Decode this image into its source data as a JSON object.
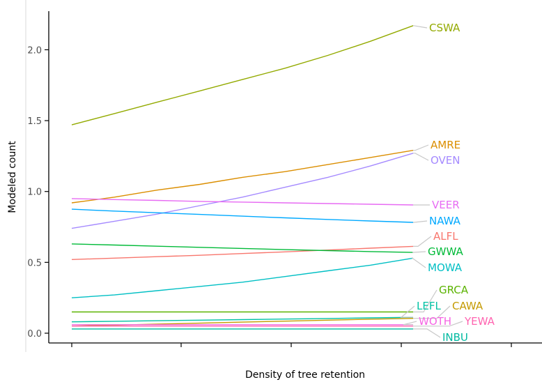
{
  "chart_data": {
    "type": "line",
    "title": "",
    "xlabel": "Density of tree retention",
    "ylabel": "Modeled count",
    "ylim": [
      -0.07,
      2.27
    ],
    "xlim": [
      0,
      1
    ],
    "yticks": [
      "0.0",
      "0.5",
      "1.0",
      "1.5",
      "2.0"
    ],
    "ytick_values": [
      0.0,
      0.5,
      1.0,
      1.5,
      2.0
    ],
    "grid": false,
    "legend": "none",
    "x": [
      0,
      0.125,
      0.25,
      0.375,
      0.5,
      0.625,
      0.75,
      0.875,
      1
    ],
    "series": [
      {
        "name": "CSWA",
        "color": "#93aa00",
        "values": [
          1.47,
          1.55,
          1.63,
          1.71,
          1.79,
          1.87,
          1.96,
          2.06,
          2.17
        ]
      },
      {
        "name": "AMRE",
        "color": "#db8e00",
        "values": [
          0.92,
          0.96,
          1.01,
          1.05,
          1.1,
          1.14,
          1.19,
          1.24,
          1.29
        ]
      },
      {
        "name": "OVEN",
        "color": "#a58aff",
        "values": [
          0.74,
          0.79,
          0.84,
          0.9,
          0.96,
          1.03,
          1.1,
          1.18,
          1.27
        ]
      },
      {
        "name": "VEER",
        "color": "#e76bf3",
        "values": [
          0.95,
          0.943,
          0.937,
          0.93,
          0.925,
          0.92,
          0.915,
          0.91,
          0.905
        ]
      },
      {
        "name": "NAWA",
        "color": "#00a9ff",
        "values": [
          0.875,
          0.862,
          0.85,
          0.838,
          0.826,
          0.814,
          0.803,
          0.792,
          0.782
        ]
      },
      {
        "name": "ALFL",
        "color": "#f8766d",
        "values": [
          0.52,
          0.53,
          0.54,
          0.55,
          0.562,
          0.574,
          0.587,
          0.6,
          0.613
        ]
      },
      {
        "name": "GWWA",
        "color": "#00ba38",
        "values": [
          0.63,
          0.622,
          0.614,
          0.606,
          0.598,
          0.59,
          0.583,
          0.576,
          0.57
        ]
      },
      {
        "name": "MOWA",
        "color": "#00bfc4",
        "values": [
          0.25,
          0.27,
          0.3,
          0.33,
          0.36,
          0.4,
          0.44,
          0.48,
          0.53
        ]
      },
      {
        "name": "GRCA",
        "color": "#5bb300",
        "values": [
          0.15,
          0.15,
          0.15,
          0.15,
          0.15,
          0.15,
          0.15,
          0.15,
          0.15
        ]
      },
      {
        "name": "LEFL",
        "color": "#00c1a3",
        "values": [
          0.08,
          0.084,
          0.088,
          0.092,
          0.096,
          0.1,
          0.104,
          0.108,
          0.112
        ]
      },
      {
        "name": "CAWA",
        "color": "#c49a00",
        "values": [
          0.05,
          0.057,
          0.064,
          0.071,
          0.078,
          0.085,
          0.092,
          0.099,
          0.105
        ]
      },
      {
        "name": "WOTH",
        "color": "#f564e3",
        "values": [
          0.06,
          0.06,
          0.06,
          0.06,
          0.06,
          0.06,
          0.06,
          0.06,
          0.06
        ]
      },
      {
        "name": "YEWA",
        "color": "#ff64b0",
        "values": [
          0.05,
          0.05,
          0.05,
          0.05,
          0.05,
          0.05,
          0.05,
          0.05,
          0.05
        ]
      },
      {
        "name": "INBU",
        "color": "#00b9a0",
        "values": [
          0.03,
          0.03,
          0.03,
          0.03,
          0.03,
          0.03,
          0.03,
          0.03,
          0.03
        ]
      }
    ]
  }
}
